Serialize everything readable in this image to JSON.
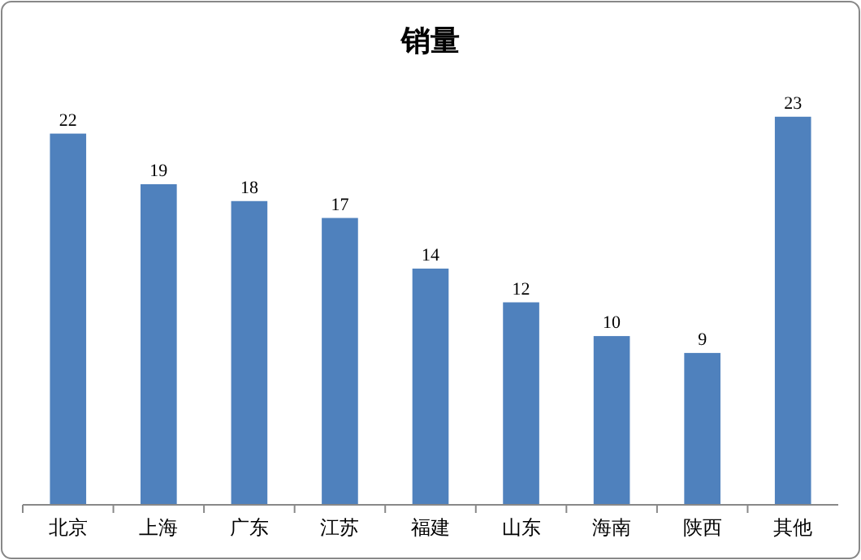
{
  "chart_data": {
    "type": "bar",
    "title": "销量",
    "categories": [
      "北京",
      "上海",
      "广东",
      "江苏",
      "福建",
      "山东",
      "海南",
      "陕西",
      "其他"
    ],
    "values": [
      22,
      19,
      18,
      17,
      14,
      12,
      10,
      9,
      23
    ],
    "color": "#4f81bd",
    "data_labels": true
  }
}
